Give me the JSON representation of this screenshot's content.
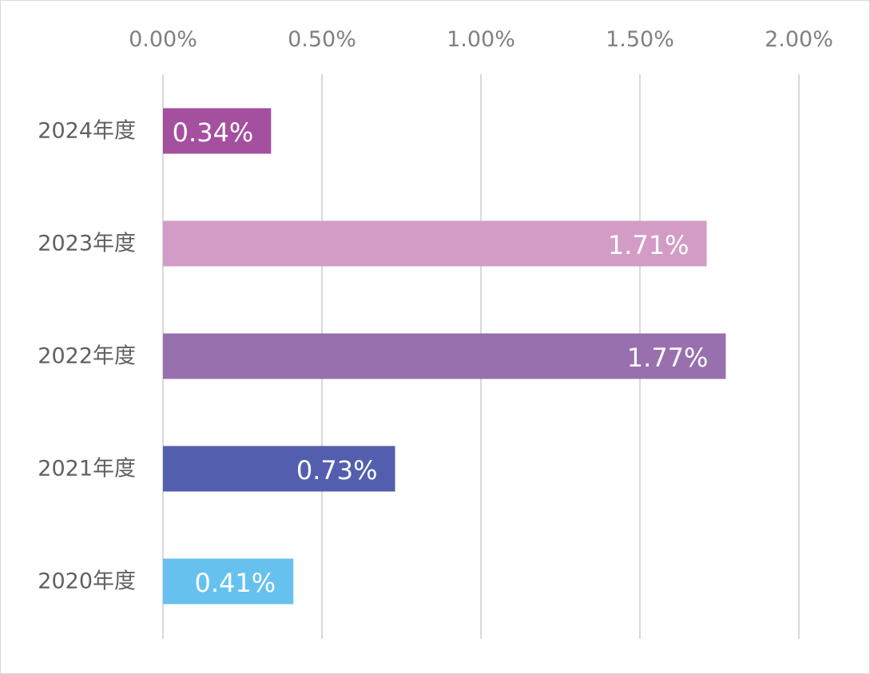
{
  "chart_data": {
    "type": "bar",
    "orientation": "horizontal",
    "title": "",
    "xlabel": "",
    "ylabel": "",
    "categories": [
      "2024年度",
      "2023年度",
      "2022年度",
      "2021年度",
      "2020年度"
    ],
    "values": [
      0.34,
      1.71,
      1.77,
      0.73,
      0.41
    ],
    "value_labels": [
      "0.34%",
      "1.71%",
      "1.77%",
      "0.73%",
      "0.41%"
    ],
    "bar_colors": [
      "#a54f9f",
      "#d39cc6",
      "#9870ae",
      "#535fae",
      "#66c1ee"
    ],
    "xlim": [
      0,
      2
    ],
    "x_ticks": [
      0,
      0.5,
      1,
      1.5,
      2
    ],
    "x_tick_labels": [
      "0.00%",
      "0.50%",
      "1.00%",
      "1.50%",
      "2.00%"
    ],
    "x_axis_position": "top",
    "grid": true,
    "legend": "none"
  }
}
